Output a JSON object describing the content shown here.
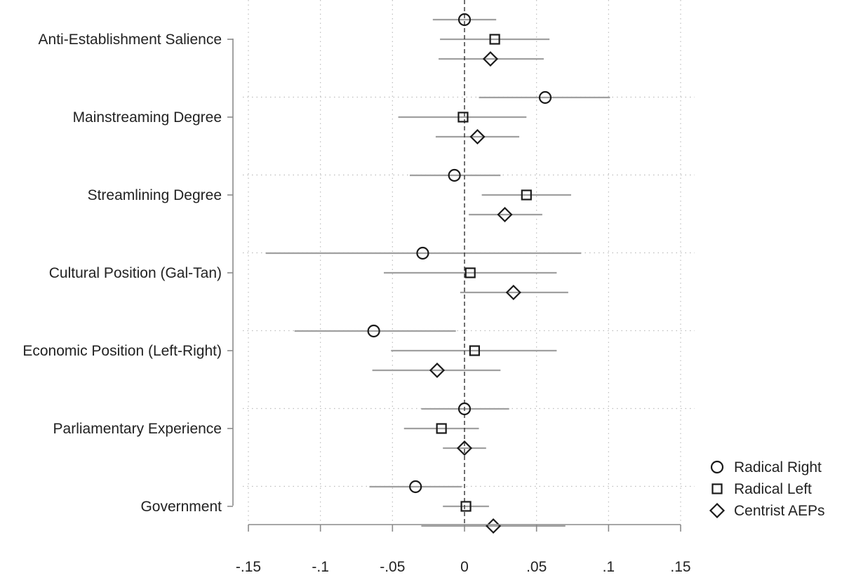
{
  "chart_data": {
    "type": "coefficient-plot",
    "title": "",
    "xlabel": "",
    "ylabel": "",
    "xlim": [
      -0.15,
      0.15
    ],
    "x_ticks": [
      -0.15,
      -0.1,
      -0.05,
      0,
      0.05,
      0.1,
      0.15
    ],
    "x_tick_labels": [
      "-.15",
      "-.1",
      "-.05",
      "0",
      ".05",
      ".1",
      ".15"
    ],
    "reference_line": 0,
    "grid": true,
    "legend_position": "bottom-right",
    "categories": [
      "Anti-Establishment Salience",
      "Mainstreaming Degree",
      "Streamlining Degree",
      "Cultural Position (Gal-Tan)",
      "Economic Position (Left-Right)",
      "Parliamentary Experience",
      "Government"
    ],
    "series": [
      {
        "name": "Radical Right",
        "marker": "circle",
        "points": [
          {
            "est": 0.0,
            "lo": -0.022,
            "hi": 0.022
          },
          {
            "est": 0.056,
            "lo": 0.01,
            "hi": 0.101
          },
          {
            "est": -0.007,
            "lo": -0.038,
            "hi": 0.025
          },
          {
            "est": -0.029,
            "lo": -0.138,
            "hi": 0.081
          },
          {
            "est": -0.063,
            "lo": -0.118,
            "hi": -0.006
          },
          {
            "est": 0.0,
            "lo": -0.03,
            "hi": 0.031
          },
          {
            "est": -0.034,
            "lo": -0.066,
            "hi": -0.002
          }
        ]
      },
      {
        "name": "Radical Left",
        "marker": "square",
        "points": [
          {
            "est": 0.021,
            "lo": -0.017,
            "hi": 0.059
          },
          {
            "est": -0.001,
            "lo": -0.046,
            "hi": 0.043
          },
          {
            "est": 0.043,
            "lo": 0.012,
            "hi": 0.074
          },
          {
            "est": 0.004,
            "lo": -0.056,
            "hi": 0.064
          },
          {
            "est": 0.007,
            "lo": -0.051,
            "hi": 0.064
          },
          {
            "est": -0.016,
            "lo": -0.042,
            "hi": 0.01
          },
          {
            "est": 0.001,
            "lo": -0.015,
            "hi": 0.017
          }
        ]
      },
      {
        "name": "Centrist AEPs",
        "marker": "diamond",
        "points": [
          {
            "est": 0.018,
            "lo": -0.018,
            "hi": 0.055
          },
          {
            "est": 0.009,
            "lo": -0.02,
            "hi": 0.038
          },
          {
            "est": 0.028,
            "lo": 0.003,
            "hi": 0.054
          },
          {
            "est": 0.034,
            "lo": -0.003,
            "hi": 0.072
          },
          {
            "est": -0.019,
            "lo": -0.064,
            "hi": 0.025
          },
          {
            "est": 0.0,
            "lo": -0.015,
            "hi": 0.015
          },
          {
            "est": 0.02,
            "lo": -0.03,
            "hi": 0.07
          }
        ]
      }
    ],
    "colors": {
      "ci_line": "#a0a0a0",
      "marker": "#1a1a1a",
      "axis": "#8a8a8a",
      "grid": "#bdbdbd",
      "zero_line": "#333333"
    }
  }
}
